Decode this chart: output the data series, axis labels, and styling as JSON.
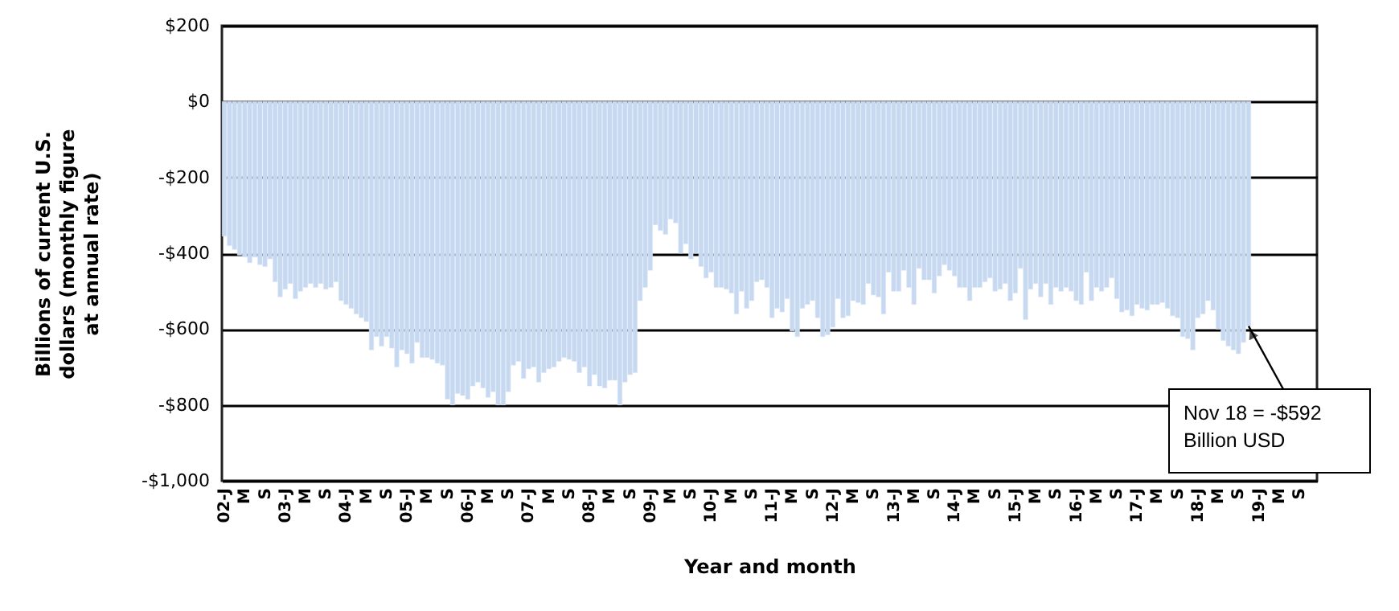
{
  "chart_data": {
    "type": "bar",
    "ylabel": "Billions of current U.S. dollars (monthly figure at annual rate)",
    "xlabel": "Year and month",
    "categories": [
      "02-J",
      null,
      null,
      null,
      "M",
      null,
      null,
      null,
      "S",
      null,
      null,
      null,
      "03-J",
      null,
      null,
      null,
      "M",
      null,
      null,
      null,
      "S",
      null,
      null,
      null,
      "04-J",
      null,
      null,
      null,
      "M",
      null,
      null,
      null,
      "S",
      null,
      null,
      null,
      "05-J",
      null,
      null,
      null,
      "M",
      null,
      null,
      null,
      "S",
      null,
      null,
      null,
      "06-J",
      null,
      null,
      null,
      "M",
      null,
      null,
      null,
      "S",
      null,
      null,
      null,
      "07-J",
      null,
      null,
      null,
      "M",
      null,
      null,
      null,
      "S",
      null,
      null,
      null,
      "08-J",
      null,
      null,
      null,
      "M",
      null,
      null,
      null,
      "S",
      null,
      null,
      null,
      "09-J",
      null,
      null,
      null,
      "M",
      null,
      null,
      null,
      "S",
      null,
      null,
      null,
      "10-J",
      null,
      null,
      null,
      "M",
      null,
      null,
      null,
      "S",
      null,
      null,
      null,
      "11-J",
      null,
      null,
      null,
      "M",
      null,
      null,
      null,
      "S",
      null,
      null,
      null,
      "12-J",
      null,
      null,
      null,
      "M",
      null,
      null,
      null,
      "S",
      null,
      null,
      null,
      "13-J",
      null,
      null,
      null,
      "M",
      null,
      null,
      null,
      "S",
      null,
      null,
      null,
      "14-J",
      null,
      null,
      null,
      "M",
      null,
      null,
      null,
      "S",
      null,
      null,
      null,
      "15-J",
      null,
      null,
      null,
      "M",
      null,
      null,
      null,
      "S",
      null,
      null,
      null,
      "16-J",
      null,
      null,
      null,
      "M",
      null,
      null,
      null,
      "S",
      null,
      null,
      null,
      "17-J",
      null,
      null,
      null,
      "M",
      null,
      null,
      null,
      "S",
      null,
      null,
      null,
      "18-J",
      null,
      null,
      null,
      "M",
      null,
      null,
      null,
      "S",
      null,
      null,
      null,
      "19-J",
      null,
      null,
      null,
      "M",
      null,
      null,
      null,
      "S",
      null,
      null,
      null
    ],
    "values": [
      -355,
      -380,
      -390,
      -405,
      -410,
      -425,
      -410,
      -430,
      -435,
      -415,
      -475,
      -515,
      -495,
      -480,
      -520,
      -500,
      -490,
      -480,
      -490,
      -480,
      -495,
      -490,
      -475,
      -525,
      -535,
      -545,
      -560,
      -570,
      -580,
      -655,
      -620,
      -645,
      -620,
      -650,
      -700,
      -655,
      -665,
      -690,
      -635,
      -675,
      -675,
      -680,
      -690,
      -695,
      -785,
      -800,
      -770,
      -775,
      -785,
      -750,
      -740,
      -755,
      -780,
      -765,
      -800,
      -800,
      -765,
      -695,
      -685,
      -730,
      -705,
      -700,
      -740,
      -715,
      -705,
      -700,
      -685,
      -675,
      -680,
      -685,
      -715,
      -700,
      -750,
      -720,
      -750,
      -755,
      -735,
      -735,
      -800,
      -740,
      -720,
      -715,
      -525,
      -490,
      -445,
      -325,
      -340,
      -350,
      -310,
      -320,
      -400,
      -375,
      -415,
      -400,
      -435,
      -465,
      -450,
      -490,
      -490,
      -495,
      -505,
      -560,
      -500,
      -545,
      -525,
      -475,
      -470,
      -490,
      -570,
      -545,
      -555,
      -520,
      -605,
      -620,
      -545,
      -535,
      -525,
      -570,
      -620,
      -615,
      -595,
      -520,
      -570,
      -565,
      -525,
      -530,
      -535,
      -480,
      -510,
      -515,
      -560,
      -450,
      -500,
      -500,
      -445,
      -490,
      -535,
      -440,
      -470,
      -470,
      -505,
      -460,
      -430,
      -445,
      -460,
      -490,
      -490,
      -525,
      -490,
      -490,
      -475,
      -465,
      -500,
      -495,
      -480,
      -525,
      -505,
      -440,
      -575,
      -495,
      -480,
      -515,
      -480,
      -535,
      -490,
      -500,
      -490,
      -500,
      -525,
      -535,
      -450,
      -525,
      -490,
      -500,
      -490,
      -465,
      -520,
      -555,
      -550,
      -565,
      -535,
      -545,
      -550,
      -535,
      -535,
      -530,
      -545,
      -565,
      -570,
      -620,
      -625,
      -655,
      -570,
      -560,
      -525,
      -550,
      -600,
      -630,
      -645,
      -655,
      -665,
      -635,
      -592,
      null,
      null,
      null,
      null,
      null,
      null,
      null,
      null,
      null,
      null,
      null,
      null,
      null
    ],
    "color": "#c6d9f0",
    "ylim": [
      -1000,
      200
    ],
    "yticks": [
      {
        "value": -1000,
        "label": "-$1,000"
      },
      {
        "value": -800,
        "label": "-$800"
      },
      {
        "value": -600,
        "label": "-$600"
      },
      {
        "value": -400,
        "label": "-$400"
      },
      {
        "value": -200,
        "label": "-$200"
      },
      {
        "value": 0,
        "label": "$0"
      },
      {
        "value": 200,
        "label": "$200"
      }
    ],
    "grid": "y",
    "annotations": [
      {
        "text": "Nov 18  = -$592\nBillion USD",
        "y": -592
      }
    ]
  }
}
